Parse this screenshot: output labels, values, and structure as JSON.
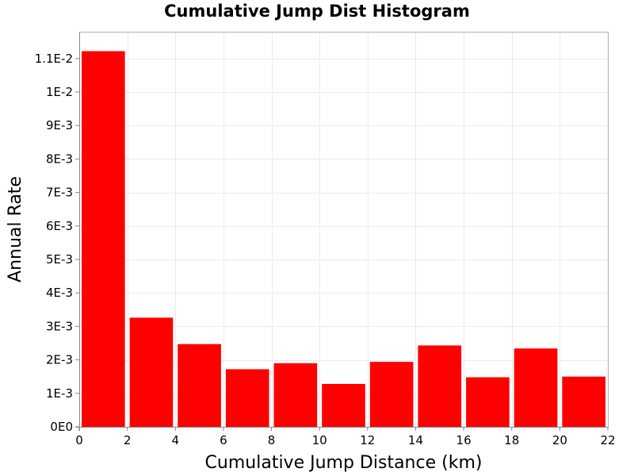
{
  "chart_data": {
    "type": "bar",
    "title": "Cumulative Jump Dist Histogram",
    "xlabel": "Cumulative Jump Distance (km)",
    "ylabel": "Annual Rate",
    "xlim": [
      0,
      22
    ],
    "ylim": [
      0,
      0.0118
    ],
    "grid": true,
    "bar_color": "#ff0000",
    "bin_width": 2,
    "bins": [
      {
        "x0": 0,
        "x1": 2,
        "value": 0.01122
      },
      {
        "x0": 2,
        "x1": 4,
        "value": 0.00326
      },
      {
        "x0": 4,
        "x1": 6,
        "value": 0.00247
      },
      {
        "x0": 6,
        "x1": 8,
        "value": 0.00172
      },
      {
        "x0": 8,
        "x1": 10,
        "value": 0.0019
      },
      {
        "x0": 10,
        "x1": 12,
        "value": 0.00128
      },
      {
        "x0": 12,
        "x1": 14,
        "value": 0.00194
      },
      {
        "x0": 14,
        "x1": 16,
        "value": 0.00243
      },
      {
        "x0": 16,
        "x1": 18,
        "value": 0.00148
      },
      {
        "x0": 18,
        "x1": 20,
        "value": 0.00234
      },
      {
        "x0": 20,
        "x1": 22,
        "value": 0.0015
      }
    ],
    "x_ticks": [
      {
        "value": 0,
        "label": "0"
      },
      {
        "value": 2,
        "label": "2"
      },
      {
        "value": 4,
        "label": "4"
      },
      {
        "value": 6,
        "label": "6"
      },
      {
        "value": 8,
        "label": "8"
      },
      {
        "value": 10,
        "label": "10"
      },
      {
        "value": 12,
        "label": "12"
      },
      {
        "value": 14,
        "label": "14"
      },
      {
        "value": 16,
        "label": "16"
      },
      {
        "value": 18,
        "label": "18"
      },
      {
        "value": 20,
        "label": "20"
      },
      {
        "value": 22,
        "label": "22"
      }
    ],
    "y_ticks": [
      {
        "value": 0,
        "label": "0E0"
      },
      {
        "value": 0.001,
        "label": "1E-3"
      },
      {
        "value": 0.002,
        "label": "2E-3"
      },
      {
        "value": 0.003,
        "label": "3E-3"
      },
      {
        "value": 0.004,
        "label": "4E-3"
      },
      {
        "value": 0.005,
        "label": "5E-3"
      },
      {
        "value": 0.006,
        "label": "6E-3"
      },
      {
        "value": 0.007,
        "label": "7E-3"
      },
      {
        "value": 0.008,
        "label": "8E-3"
      },
      {
        "value": 0.009,
        "label": "9E-3"
      },
      {
        "value": 0.01,
        "label": "1E-2"
      },
      {
        "value": 0.011,
        "label": "1.1E-2"
      }
    ]
  }
}
